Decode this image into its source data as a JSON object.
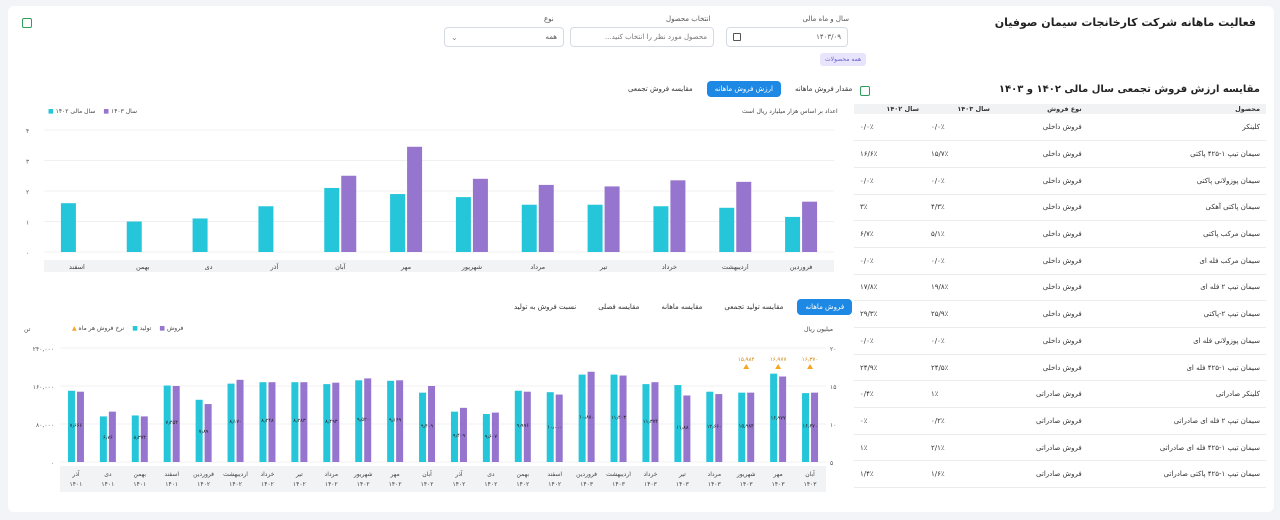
{
  "header": {
    "title": "فعالیت ماهانه شرکت کارخانجات سیمان صوفیان",
    "year_month_label": "سال و ماه مالی",
    "year_month_value": "۱۴۰۳/۰۹",
    "product_label": "انتخاب محصول",
    "product_placeholder": "محصول مورد نظر را انتخاب کنید...",
    "type_label": "نوع",
    "type_value": "همه",
    "all_products_chip": "همه محصولات"
  },
  "top_chart": {
    "tabs": [
      "مقدار فروش ماهانه",
      "ارزش فروش ماهانه",
      "مقایسه فروش تجمعی"
    ],
    "active_tab": 1,
    "note": "اعداد بر اساس هزار میلیارد ریال است",
    "legend": [
      "سال ۱۴۰۳",
      "سال مالی ۱۴۰۲"
    ]
  },
  "bottom_chart": {
    "tabs": [
      "فروش ماهانه",
      "مقایسه تولید تجمعی",
      "مقایسه ماهانه",
      "مقایسه فصلی",
      "نسبت فروش به تولید"
    ],
    "active_tab": 0,
    "legend": [
      "فروش",
      "تولید",
      "نرخ فروش هر ماه"
    ],
    "left_unit": "تن",
    "right_unit": "میلیون ریال"
  },
  "table_section": {
    "title": "مقایسه ارزش فروش تجمعی سال مالی ۱۴۰۲ و ۱۴۰۳",
    "columns": [
      "محصول",
      "نوع فروش",
      "سال ۱۴۰۳",
      "سال ۱۴۰۲"
    ],
    "rows": [
      [
        "کلینکر",
        "فروش داخلی",
        "۰/۰٪",
        "۰/۰٪"
      ],
      [
        "سیمان تیپ ۱-۴۲۵ پاکتی",
        "فروش داخلی",
        "۱۵/۷٪",
        "۱۶/۶٪"
      ],
      [
        "سیمان پوزولانی پاکتی",
        "فروش داخلی",
        "۰/۰٪",
        "۰/۰٪"
      ],
      [
        "سیمان پاکتی آهکی",
        "فروش داخلی",
        "۴/۳٪",
        "۳٪"
      ],
      [
        "سیمان مرکب پاکتی",
        "فروش داخلی",
        "۵/۱٪",
        "۶/۷٪"
      ],
      [
        "سیمان مرکب فله ای",
        "فروش داخلی",
        "۰/۰٪",
        "۰/۰٪"
      ],
      [
        "سیمان تیپ ۲ فله ای",
        "فروش داخلی",
        "۱۹/۸٪",
        "۱۷/۸٪"
      ],
      [
        "سیمان تیپ ۲-پاکتی",
        "فروش داخلی",
        "۲۵/۹٪",
        "۲۹/۳٪"
      ],
      [
        "سیمان پوزولانی فله ای",
        "فروش داخلی",
        "۰/۰٪",
        "۰/۰٪"
      ],
      [
        "سیمان تیپ ۱-۴۲۵ فله ای",
        "فروش داخلی",
        "۲۴/۵٪",
        "۲۴/۹٪"
      ],
      [
        "کلینکر صادراتی",
        "فروش صادراتی",
        "۱٪",
        "۰/۴٪"
      ],
      [
        "سیمان تیپ ۲ فله ای صادراتی",
        "فروش صادراتی",
        "۰/۲٪",
        "۰٪"
      ],
      [
        "سیمان تیپ ۱-۴۲۵ فله ای صادراتی",
        "فروش صادراتی",
        "۲/۱٪",
        "۱٪"
      ],
      [
        "سیمان تیپ ۱-۴۲۵ پاکتی صادراتی",
        "فروش صادراتی",
        "۱/۶٪",
        "۱/۴٪"
      ]
    ]
  },
  "colors": {
    "cyan": "#26c6da",
    "purple": "#9575cd",
    "orange": "#f5a623",
    "blue": "#1e88e5"
  },
  "chart_data": [
    {
      "type": "bar",
      "categories": [
        "اسفند",
        "بهمن",
        "دی",
        "آذر",
        "آبان",
        "مهر",
        "شهریور",
        "مرداد",
        "تیر",
        "خرداد",
        "اردیبهشت",
        "فروردین"
      ],
      "series": [
        {
          "name": "سال ۱۴۰۳",
          "values": [
            null,
            null,
            null,
            null,
            2.5,
            3.45,
            2.4,
            2.2,
            2.15,
            2.35,
            2.3,
            1.65
          ]
        },
        {
          "name": "سال مالی ۱۴۰۲",
          "values": [
            1.6,
            1.0,
            1.1,
            1.5,
            2.1,
            1.9,
            1.8,
            1.55,
            1.55,
            1.5,
            1.45,
            1.15
          ]
        }
      ],
      "ylim": [
        0,
        4
      ],
      "yticks": [
        "۰",
        "۱",
        "۲",
        "۳",
        "۴"
      ]
    },
    {
      "type": "bar",
      "categories": [
        "آذر ۱۴۰۱",
        "دی ۱۴۰۱",
        "بهمن ۱۴۰۱",
        "اسفند ۱۴۰۱",
        "فروردین ۱۴۰۲",
        "اردیبهشت ۱۴۰۲",
        "خرداد ۱۴۰۲",
        "تیر ۱۴۰۲",
        "مرداد ۱۴۰۲",
        "شهریور ۱۴۰۲",
        "مهر ۱۴۰۲",
        "آبان ۱۴۰۲",
        "آذر ۱۴۰۲",
        "دی ۱۴۰۲",
        "بهمن ۱۴۰۲",
        "اسفند ۱۴۰۲",
        "فروردین ۱۴۰۳",
        "اردیبهشت ۱۴۰۳",
        "خرداد ۱۴۰۳",
        "تیر ۱۴۰۳",
        "مرداد ۱۴۰۳",
        "شهریور ۱۴۰۳",
        "مهر ۱۴۰۳",
        "آبان ۱۴۰۳"
      ],
      "series": [
        {
          "name": "فروش",
          "values": [
            148000,
            106000,
            96000,
            160000,
            122000,
            173000,
            168000,
            168000,
            167000,
            176000,
            172000,
            160000,
            114000,
            104000,
            148000,
            142000,
            190000,
            182000,
            168000,
            140000,
            143000,
            146000,
            180000,
            146000
          ]
        },
        {
          "name": "تولید",
          "values": [
            150000,
            96000,
            98000,
            161000,
            131000,
            165000,
            168000,
            168000,
            164000,
            172000,
            171000,
            146000,
            106000,
            101000,
            150000,
            147000,
            184000,
            184000,
            164000,
            162000,
            148000,
            146000,
            186000,
            145000
          ]
        }
      ],
      "rate_points": [
        {
          "category": "شهریور ۱۴۰۳",
          "label": "۱۵٫۹۸۴"
        },
        {
          "category": "مهر ۱۴۰۳",
          "label": "۱۶٫۹۷۷"
        },
        {
          "category": "آبان ۱۴۰۳",
          "label": "۱۶٫۳۷۰"
        }
      ],
      "bar_labels": [
        "۷٫۶۶۶",
        "۶٫۷۶",
        "۸٫۳۷۴",
        "۷٫۴۵۴",
        "۷٫۸۹",
        "۸٫۱۷۰",
        "۸٫۲۴۸",
        "۸٫۲۸۳",
        "۸٫۴۹۳",
        "۹٫۵۲۰",
        "۹٫۱۶۹",
        "۹٫۴۰۹",
        "۹٫۴۰۹",
        "۹٫۶۰۷",
        "۹٫۹۹۶",
        "۱۰٫۰۰۰",
        "۱۰٫۸۸۰",
        "۱۱٫۴۰۳",
        "۱۱٫۳۷۴",
        "۱۱٫۸۸",
        "۱۲٫۶۶۰",
        "۱۵٫۹۸۴",
        "۱۶٫۹۷۷",
        "۱۶٫۳۷۰"
      ],
      "left_ticks": [
        "۰",
        "۸۰,۰۰۰",
        "۱۶۰,۰۰۰",
        "۲۴۰,۰۰۰"
      ],
      "right_ticks": [
        "۵",
        "۱۰",
        "۱۵",
        "۲۰"
      ],
      "ylim": [
        0,
        240000
      ]
    }
  ]
}
